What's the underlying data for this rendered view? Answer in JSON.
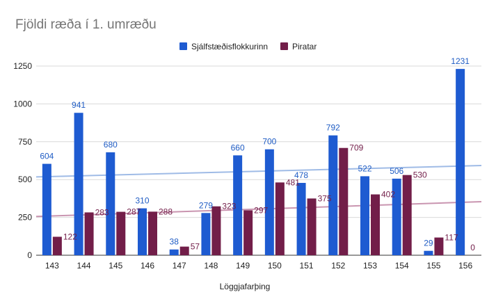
{
  "colors": {
    "series1": "#1e5bd1",
    "series2": "#721e49",
    "trend1": "#9fbbe6",
    "trend2": "#c995b0",
    "label1": "#1f5cc4",
    "label2": "#721e49"
  },
  "chart_data": {
    "type": "bar",
    "title": "Fjöldi ræða í 1. umræðu",
    "xlabel": "Löggjafarþing",
    "ylabel": "",
    "categories": [
      "143",
      "144",
      "145",
      "146",
      "147",
      "148",
      "149",
      "150",
      "151",
      "152",
      "153",
      "154",
      "155",
      "156"
    ],
    "series": [
      {
        "name": "Sjálfstæðisflokkurinn",
        "values": [
          604,
          941,
          680,
          310,
          38,
          279,
          660,
          700,
          478,
          792,
          522,
          506,
          29,
          1231
        ]
      },
      {
        "name": "Piratar",
        "values": [
          122,
          283,
          287,
          288,
          57,
          323,
          297,
          481,
          375,
          709,
          402,
          530,
          117,
          0
        ]
      }
    ],
    "trendlines": [
      {
        "series": "Sjálfstæðisflokkurinn",
        "type": "linear"
      },
      {
        "series": "Piratar",
        "type": "linear"
      }
    ],
    "ylim": [
      0,
      1400
    ],
    "yticks": [
      0,
      250,
      500,
      750,
      1000,
      1250
    ],
    "grid": true,
    "legend": "top"
  }
}
